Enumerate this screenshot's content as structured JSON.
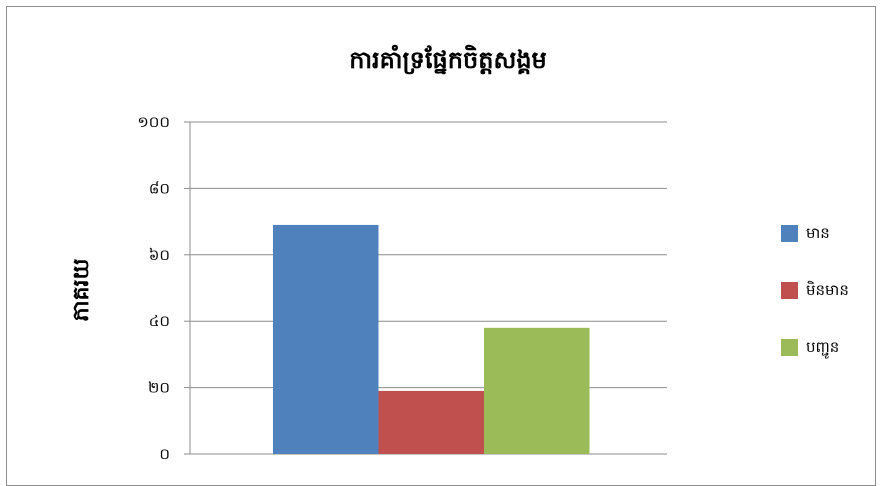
{
  "chart_data": {
    "type": "bar",
    "title": "ការគាំទ្រផ្នែកចិត្តសង្គម",
    "xlabel": "",
    "ylabel": "ភាគរយ",
    "ylim": [
      0,
      100
    ],
    "yticks": [
      0,
      20,
      40,
      60,
      80,
      100
    ],
    "ytick_labels": [
      "០",
      "២០",
      "៤០",
      "៦០",
      "៨០",
      "១០០"
    ],
    "grid": true,
    "legend_position": "right",
    "series": [
      {
        "name": "មាន",
        "values": [
          69
        ],
        "color": "#4F81BD"
      },
      {
        "name": "មិនមាន",
        "values": [
          19
        ],
        "color": "#C0504D"
      },
      {
        "name": "បញ្ជូន",
        "values": [
          38
        ],
        "color": "#9BBB59"
      }
    ]
  }
}
